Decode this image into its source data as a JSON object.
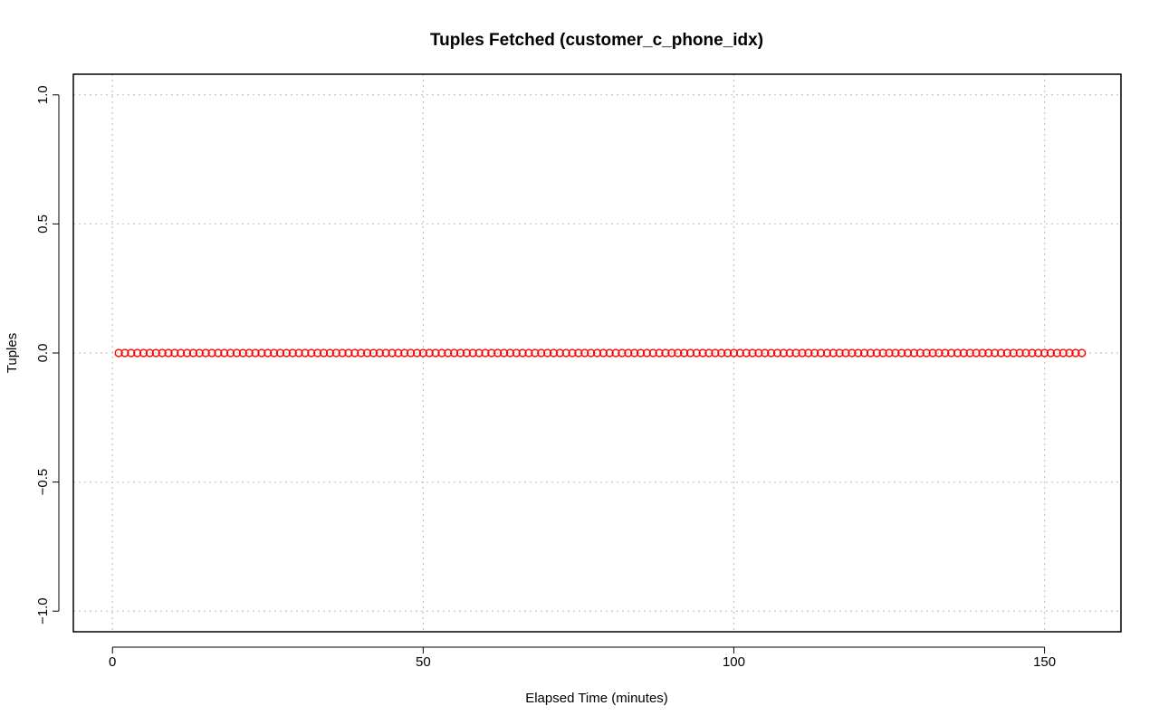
{
  "chart_data": {
    "type": "scatter",
    "title": "Tuples Fetched (customer_c_phone_idx)",
    "xlabel": "Elapsed Time (minutes)",
    "ylabel": "Tuples",
    "xlim": [
      -6.3,
      162.3
    ],
    "ylim": [
      -1.08,
      1.08
    ],
    "x_ticks": [
      0,
      50,
      100,
      150
    ],
    "x_tick_labels": [
      "0",
      "50",
      "100",
      "150"
    ],
    "y_ticks": [
      -1.0,
      -0.5,
      0.0,
      0.5,
      1.0
    ],
    "y_tick_labels": [
      "−1.0",
      "−0.5",
      "0.0",
      "0.5",
      "1.0"
    ],
    "grid": true,
    "legend": "none",
    "marker": "open-circle",
    "series": [
      {
        "color": "#ff0000",
        "x_start": 1,
        "x_end": 156,
        "x_step": 1,
        "y_constant": 0
      }
    ]
  }
}
